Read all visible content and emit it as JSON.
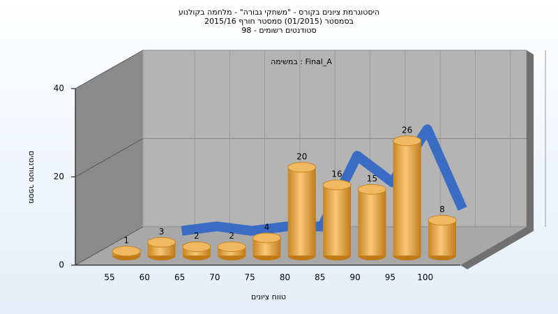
{
  "chart_data": {
    "type": "bar",
    "title": [
      "היסטוגרמת ציונים בקורס - \"משחקי גבורה\" - מלחמה בקולנוע",
      "בסמסטר  (01/2015)  סמסטר חורף 2015/16",
      "סטודנטים רשומים - 98"
    ],
    "subtitle": "במשימה : Final_A",
    "x_label": "טווח ציונים",
    "y_label": "מספר סטודנטים",
    "categories": [
      "55",
      "60",
      "65",
      "70",
      "75",
      "80",
      "85",
      "90",
      "95",
      "100"
    ],
    "series": [
      {
        "type": "bar",
        "color": "#e8a040",
        "values": [
          1,
          3,
          2,
          2,
          4,
          20,
          16,
          15,
          26,
          8
        ]
      },
      {
        "type": "line",
        "color": "#3a6cc4",
        "values": [
          null,
          3,
          4,
          3,
          4,
          4,
          20,
          14,
          26,
          8
        ]
      }
    ],
    "ylim": [
      0,
      40
    ],
    "yticks": [
      0,
      20,
      40
    ],
    "grid": true
  }
}
